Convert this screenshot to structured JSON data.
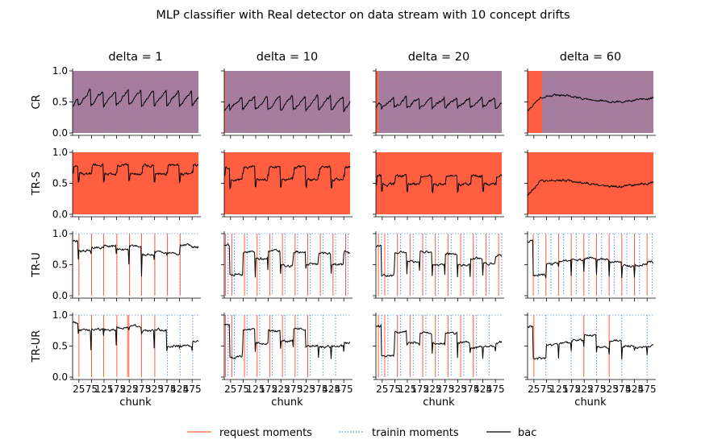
{
  "figure": {
    "suptitle": "MLP classifier with Real detector on data stream with 10 concept drifts"
  },
  "colors": {
    "request": "#ff5f40",
    "training": "#5b8fd9",
    "bac": "#000000",
    "background": "#ffffff"
  },
  "legend": {
    "placement": "bottom-center",
    "items": [
      {
        "label": "request moments",
        "style": "solid",
        "color": "#ff5f40"
      },
      {
        "label": "trainin moments",
        "style": "dotted",
        "color": "#5b8fd9"
      },
      {
        "label": "bac",
        "style": "solid",
        "color": "#000000"
      }
    ]
  },
  "chart_data": {
    "type": "line",
    "grid": false,
    "xlabel": "chunk",
    "x_range": [
      1,
      200
    ],
    "xticks": [
      25,
      75,
      125,
      175,
      225,
      275,
      325,
      375,
      425,
      475
    ],
    "xtick_labels": [
      "25",
      "75",
      "125",
      "175",
      "225",
      "275",
      "325",
      "375",
      "425",
      "475"
    ],
    "ylim": [
      0,
      1
    ],
    "yticks": [
      0.0,
      0.5,
      1.0
    ],
    "ytick_labels": [
      "0.0",
      "0.5",
      "1.0"
    ],
    "columns": [
      "delta = 1",
      "delta = 10",
      "delta = 20",
      "delta = 60"
    ],
    "rows": [
      "CR",
      "TR-S",
      "TR-U",
      "TR-UR"
    ],
    "drifts": [
      10,
      30,
      50,
      70,
      90,
      110,
      130,
      150,
      170,
      190
    ],
    "panels": [
      [
        {
          "request": "continuous",
          "training": "continuous",
          "bac": {
            "base": 0.58,
            "amp": 0.24,
            "shape": "sawtooth",
            "noise": 0.03
          }
        },
        {
          "request": "continuous",
          "training": "none",
          "bac": {
            "base": 0.72,
            "amp": 0.14,
            "shape": "step",
            "noise": 0.03
          }
        },
        {
          "request": [
            1,
            11,
            31,
            50,
            71,
            91,
            110,
            131,
            151,
            171
          ],
          "training": [
            1,
            11,
            31,
            50,
            71,
            91,
            110,
            131,
            151,
            171
          ],
          "bac": {
            "levels": [
              0.88,
              0.72,
              0.78,
              0.8,
              0.74,
              0.8,
              0.66,
              0.7,
              0.68,
              0.82,
              0.78
            ]
          }
        },
        {
          "request": [
            11,
            31,
            50,
            71,
            88,
            90,
            110,
            131
          ],
          "training": [
            151,
            171,
            191
          ],
          "bac": {
            "levels": [
              0.88,
              0.76,
              0.77,
              0.76,
              0.8,
              0.82,
              0.75,
              0.76,
              0.5,
              0.5,
              0.58
            ]
          }
        }
      ],
      [
        {
          "request": "continuous_from_3",
          "training": "continuous",
          "bac": {
            "base": 0.5,
            "amp": 0.22,
            "shape": "sawtooth",
            "noise": 0.03
          }
        },
        {
          "request": "continuous",
          "training": "none",
          "bac": {
            "base": 0.66,
            "amp": 0.2,
            "shape": "step",
            "noise": 0.03
          }
        },
        {
          "request": [
            3,
            13,
            33,
            53,
            73,
            93,
            113,
            133,
            153,
            173,
            193
          ],
          "training": [
            7,
            17,
            37,
            57,
            77,
            97,
            117,
            137,
            157,
            177,
            197
          ],
          "bac": {
            "levels": [
              0.82,
              0.34,
              0.7,
              0.6,
              0.72,
              0.48,
              0.7,
              0.5,
              0.68,
              0.5,
              0.7
            ]
          }
        },
        {
          "request": [
            3,
            13,
            33,
            53,
            73,
            93,
            113,
            133
          ],
          "training": [
            7,
            17,
            37,
            57,
            77,
            97,
            117,
            137,
            157,
            177
          ],
          "bac": {
            "levels": [
              0.85,
              0.32,
              0.76,
              0.55,
              0.74,
              0.58,
              0.76,
              0.5,
              0.48,
              0.5,
              0.55
            ]
          }
        }
      ],
      [
        {
          "request": "continuous_from_5",
          "training": "continuous",
          "bac": {
            "base": 0.5,
            "amp": 0.16,
            "shape": "sawtooth",
            "noise": 0.03
          }
        },
        {
          "request": "continuous",
          "training": "none",
          "bac": {
            "base": 0.55,
            "amp": 0.14,
            "shape": "step",
            "noise": 0.03
          }
        },
        {
          "request": [
            5,
            15,
            35,
            55,
            75,
            95,
            115,
            135,
            155,
            175,
            195
          ],
          "training": [
            10,
            20,
            40,
            60,
            80,
            100,
            120,
            140,
            160,
            180,
            200
          ],
          "bac": {
            "levels": [
              0.8,
              0.32,
              0.7,
              0.55,
              0.7,
              0.5,
              0.68,
              0.5,
              0.6,
              0.52,
              0.65
            ]
          }
        },
        {
          "request": [
            5,
            15,
            35,
            55,
            75,
            95,
            115,
            135,
            155
          ],
          "training": [
            10,
            20,
            40,
            60,
            80,
            100,
            120,
            140,
            160,
            180
          ],
          "bac": {
            "levels": [
              0.82,
              0.34,
              0.73,
              0.55,
              0.72,
              0.55,
              0.7,
              0.56,
              0.48,
              0.5,
              0.56
            ]
          }
        }
      ],
      [
        {
          "request": "continuous_to_24",
          "training": "continuous_from_24",
          "bac": {
            "base": 0.55,
            "amp": 0.05,
            "shape": "flat",
            "noise": 0.025
          }
        },
        {
          "request": "continuous",
          "training": "none",
          "bac": {
            "base": 0.5,
            "amp": 0.05,
            "shape": "flat",
            "noise": 0.025
          }
        },
        {
          "request": [
            10,
            30,
            50,
            70,
            90,
            110,
            130,
            150,
            170,
            190
          ],
          "training": [
            18,
            38,
            58,
            78,
            98,
            118,
            138,
            158,
            178,
            198
          ],
          "bac": {
            "levels": [
              0.88,
              0.33,
              0.52,
              0.56,
              0.58,
              0.6,
              0.58,
              0.55,
              0.48,
              0.5,
              0.55
            ]
          }
        },
        {
          "request": [
            11,
            90,
            130
          ],
          "training": [
            30,
            70,
            110,
            150,
            190
          ],
          "bac": {
            "levels": [
              0.82,
              0.3,
              0.52,
              0.55,
              0.6,
              0.68,
              0.48,
              0.6,
              0.5,
              0.48,
              0.5
            ]
          }
        }
      ]
    ]
  }
}
